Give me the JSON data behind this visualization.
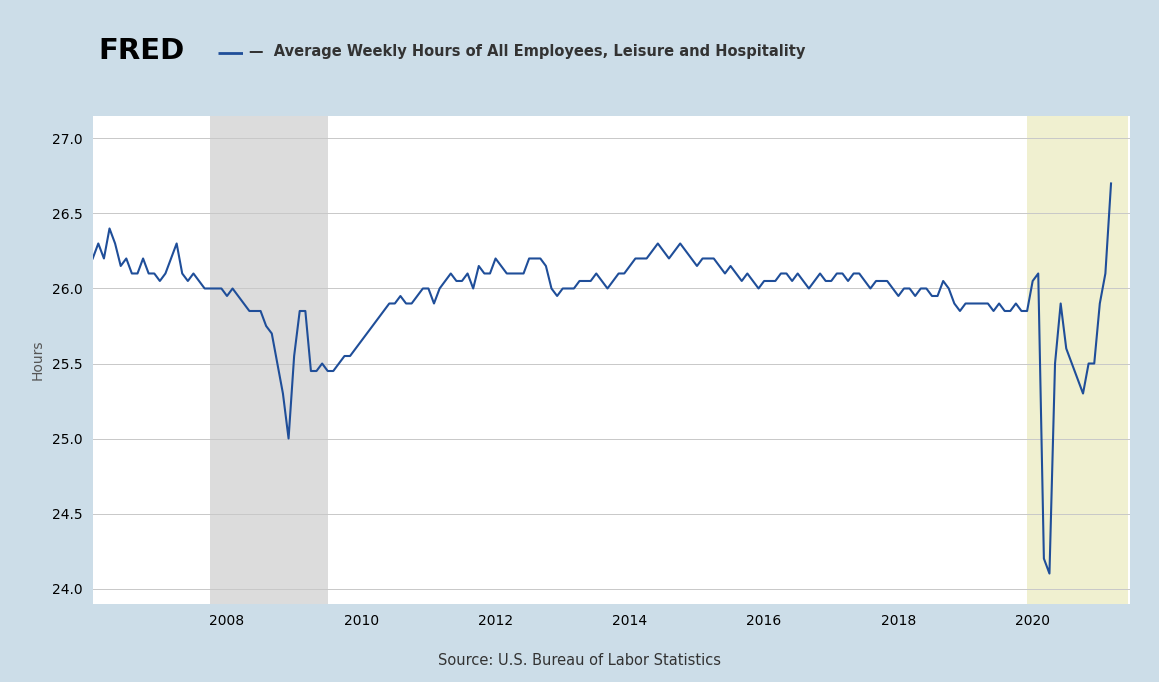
{
  "title": "Average Weekly Hours of All Employees, Leisure and Hospitality",
  "ylabel": "Hours",
  "source": "Source: U.S. Bureau of Labor Statistics",
  "line_color": "#1f4e99",
  "line_width": 1.5,
  "bg_outer": "#ccdde8",
  "bg_plot": "#ffffff",
  "recession1_color": "#dcdcdc",
  "recession2_color": "#f0f0d0",
  "recession1_start": 2007.75,
  "recession1_end": 2009.5,
  "recession2_start": 2019.917,
  "recession2_end": 2021.42,
  "ylim": [
    23.9,
    27.15
  ],
  "yticks": [
    24.0,
    24.5,
    25.0,
    25.5,
    26.0,
    26.5,
    27.0
  ],
  "xlim": [
    2006.0,
    2021.45
  ],
  "xticks": [
    2008,
    2010,
    2012,
    2014,
    2016,
    2018,
    2020
  ],
  "dates": [
    2006.0,
    2006.083,
    2006.167,
    2006.25,
    2006.333,
    2006.417,
    2006.5,
    2006.583,
    2006.667,
    2006.75,
    2006.833,
    2006.917,
    2007.0,
    2007.083,
    2007.167,
    2007.25,
    2007.333,
    2007.417,
    2007.5,
    2007.583,
    2007.667,
    2007.75,
    2007.833,
    2007.917,
    2008.0,
    2008.083,
    2008.167,
    2008.25,
    2008.333,
    2008.417,
    2008.5,
    2008.583,
    2008.667,
    2008.75,
    2008.833,
    2008.917,
    2009.0,
    2009.083,
    2009.167,
    2009.25,
    2009.333,
    2009.417,
    2009.5,
    2009.583,
    2009.667,
    2009.75,
    2009.833,
    2009.917,
    2010.0,
    2010.083,
    2010.167,
    2010.25,
    2010.333,
    2010.417,
    2010.5,
    2010.583,
    2010.667,
    2010.75,
    2010.833,
    2010.917,
    2011.0,
    2011.083,
    2011.167,
    2011.25,
    2011.333,
    2011.417,
    2011.5,
    2011.583,
    2011.667,
    2011.75,
    2011.833,
    2011.917,
    2012.0,
    2012.083,
    2012.167,
    2012.25,
    2012.333,
    2012.417,
    2012.5,
    2012.583,
    2012.667,
    2012.75,
    2012.833,
    2012.917,
    2013.0,
    2013.083,
    2013.167,
    2013.25,
    2013.333,
    2013.417,
    2013.5,
    2013.583,
    2013.667,
    2013.75,
    2013.833,
    2013.917,
    2014.0,
    2014.083,
    2014.167,
    2014.25,
    2014.333,
    2014.417,
    2014.5,
    2014.583,
    2014.667,
    2014.75,
    2014.833,
    2014.917,
    2015.0,
    2015.083,
    2015.167,
    2015.25,
    2015.333,
    2015.417,
    2015.5,
    2015.583,
    2015.667,
    2015.75,
    2015.833,
    2015.917,
    2016.0,
    2016.083,
    2016.167,
    2016.25,
    2016.333,
    2016.417,
    2016.5,
    2016.583,
    2016.667,
    2016.75,
    2016.833,
    2016.917,
    2017.0,
    2017.083,
    2017.167,
    2017.25,
    2017.333,
    2017.417,
    2017.5,
    2017.583,
    2017.667,
    2017.75,
    2017.833,
    2017.917,
    2018.0,
    2018.083,
    2018.167,
    2018.25,
    2018.333,
    2018.417,
    2018.5,
    2018.583,
    2018.667,
    2018.75,
    2018.833,
    2018.917,
    2019.0,
    2019.083,
    2019.167,
    2019.25,
    2019.333,
    2019.417,
    2019.5,
    2019.583,
    2019.667,
    2019.75,
    2019.833,
    2019.917,
    2020.0,
    2020.083,
    2020.167,
    2020.25,
    2020.333,
    2020.417,
    2020.5,
    2020.583,
    2020.667,
    2020.75,
    2020.833,
    2020.917,
    2021.0,
    2021.083,
    2021.167
  ],
  "values": [
    26.2,
    26.3,
    26.2,
    26.4,
    26.3,
    26.15,
    26.2,
    26.1,
    26.1,
    26.2,
    26.1,
    26.1,
    26.05,
    26.1,
    26.2,
    26.3,
    26.1,
    26.05,
    26.1,
    26.05,
    26.0,
    26.0,
    26.0,
    26.0,
    25.95,
    26.0,
    25.95,
    25.9,
    25.85,
    25.85,
    25.85,
    25.75,
    25.7,
    25.5,
    25.3,
    25.0,
    25.55,
    25.85,
    25.85,
    25.45,
    25.45,
    25.5,
    25.45,
    25.45,
    25.5,
    25.55,
    25.55,
    25.6,
    25.65,
    25.7,
    25.75,
    25.8,
    25.85,
    25.9,
    25.9,
    25.95,
    25.9,
    25.9,
    25.95,
    26.0,
    26.0,
    25.9,
    26.0,
    26.05,
    26.1,
    26.05,
    26.05,
    26.1,
    26.0,
    26.15,
    26.1,
    26.1,
    26.2,
    26.15,
    26.1,
    26.1,
    26.1,
    26.1,
    26.2,
    26.2,
    26.2,
    26.15,
    26.0,
    25.95,
    26.0,
    26.0,
    26.0,
    26.05,
    26.05,
    26.05,
    26.1,
    26.05,
    26.0,
    26.05,
    26.1,
    26.1,
    26.15,
    26.2,
    26.2,
    26.2,
    26.25,
    26.3,
    26.25,
    26.2,
    26.25,
    26.3,
    26.25,
    26.2,
    26.15,
    26.2,
    26.2,
    26.2,
    26.15,
    26.1,
    26.15,
    26.1,
    26.05,
    26.1,
    26.05,
    26.0,
    26.05,
    26.05,
    26.05,
    26.1,
    26.1,
    26.05,
    26.1,
    26.05,
    26.0,
    26.05,
    26.1,
    26.05,
    26.05,
    26.1,
    26.1,
    26.05,
    26.1,
    26.1,
    26.05,
    26.0,
    26.05,
    26.05,
    26.05,
    26.0,
    25.95,
    26.0,
    26.0,
    25.95,
    26.0,
    26.0,
    25.95,
    25.95,
    26.05,
    26.0,
    25.9,
    25.85,
    25.9,
    25.9,
    25.9,
    25.9,
    25.9,
    25.85,
    25.9,
    25.85,
    25.85,
    25.9,
    25.85,
    25.85,
    26.05,
    26.1,
    24.2,
    24.1,
    25.5,
    25.9,
    25.6,
    25.5,
    25.4,
    25.3,
    25.5,
    25.5,
    25.9,
    26.1,
    26.7
  ]
}
